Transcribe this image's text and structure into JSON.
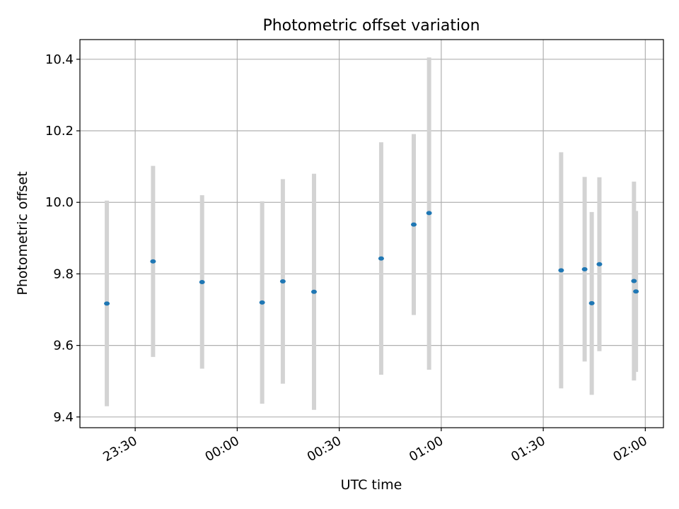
{
  "chart_data": {
    "type": "scatter",
    "title": "Photometric offset variation",
    "xlabel": "UTC time",
    "ylabel": "Photometric offset",
    "x_axis_type": "time",
    "xlim": [
      "23:13:45",
      "02:05:20"
    ],
    "ylim": [
      9.37,
      10.455
    ],
    "xticks": [
      {
        "time": "23:30",
        "label": "23:30"
      },
      {
        "time": "00:00",
        "label": "00:00"
      },
      {
        "time": "00:30",
        "label": "00:30"
      },
      {
        "time": "01:00",
        "label": "01:00"
      },
      {
        "time": "01:30",
        "label": "01:30"
      },
      {
        "time": "02:00",
        "label": "02:00"
      }
    ],
    "yticks": [
      9.4,
      9.6,
      9.8,
      10.0,
      10.2,
      10.4
    ],
    "ytick_labels": [
      "9.4",
      "9.6",
      "9.8",
      "10.0",
      "10.2",
      "10.4"
    ],
    "grid": true,
    "series": [
      {
        "marker_color": "#1f77b4",
        "errorbar_color": "#d3d3d3",
        "points": [
          {
            "x": "23:21:40",
            "y": 9.717,
            "low": 9.43,
            "high": 10.005
          },
          {
            "x": "23:35:15",
            "y": 9.835,
            "low": 9.568,
            "high": 10.102
          },
          {
            "x": "23:49:40",
            "y": 9.777,
            "low": 9.535,
            "high": 10.02
          },
          {
            "x": "00:07:20",
            "y": 9.72,
            "low": 9.437,
            "high": 10.003
          },
          {
            "x": "00:13:25",
            "y": 9.779,
            "low": 9.493,
            "high": 10.065
          },
          {
            "x": "00:22:35",
            "y": 9.75,
            "low": 9.42,
            "high": 10.08
          },
          {
            "x": "00:42:20",
            "y": 9.843,
            "low": 9.518,
            "high": 10.168
          },
          {
            "x": "00:51:55",
            "y": 9.938,
            "low": 9.685,
            "high": 10.191
          },
          {
            "x": "00:56:25",
            "y": 9.97,
            "low": 9.532,
            "high": 10.405
          },
          {
            "x": "01:35:15",
            "y": 9.81,
            "low": 9.48,
            "high": 10.14
          },
          {
            "x": "01:42:10",
            "y": 9.813,
            "low": 9.555,
            "high": 10.071
          },
          {
            "x": "01:44:15",
            "y": 9.718,
            "low": 9.462,
            "high": 9.973
          },
          {
            "x": "01:46:30",
            "y": 9.827,
            "low": 9.584,
            "high": 10.07
          },
          {
            "x": "01:56:40",
            "y": 9.78,
            "low": 9.502,
            "high": 10.058
          },
          {
            "x": "01:57:15",
            "y": 9.751,
            "low": 9.526,
            "high": 9.976
          }
        ]
      }
    ]
  }
}
